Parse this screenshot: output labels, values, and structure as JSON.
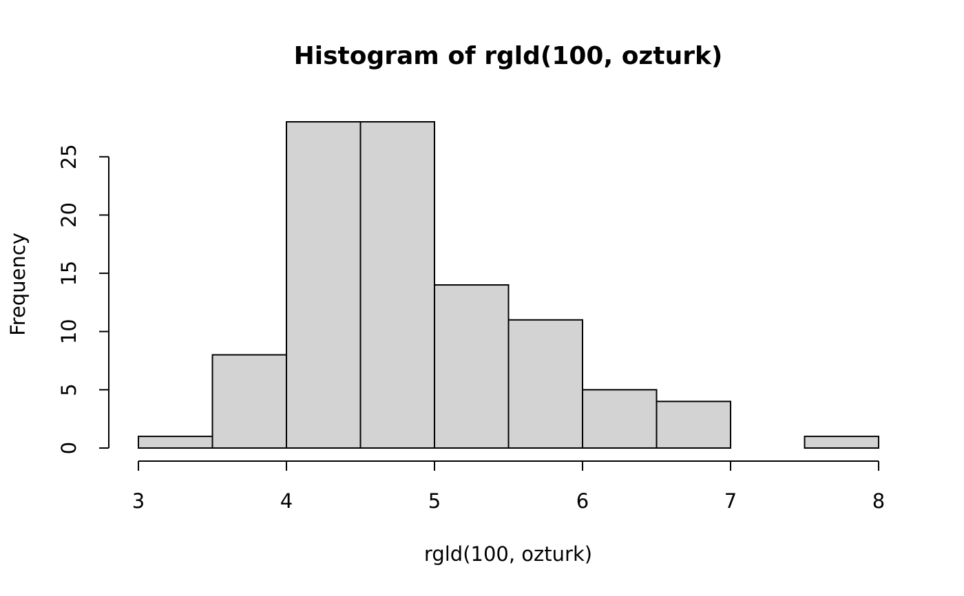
{
  "chart_data": {
    "type": "bar",
    "title": "Histogram of rgld(100, ozturk)",
    "xlabel": "rgld(100, ozturk)",
    "ylabel": "Frequency",
    "bins": [
      {
        "start": 3.0,
        "end": 3.5,
        "count": 1
      },
      {
        "start": 3.5,
        "end": 4.0,
        "count": 8
      },
      {
        "start": 4.0,
        "end": 4.5,
        "count": 28
      },
      {
        "start": 4.5,
        "end": 5.0,
        "count": 28
      },
      {
        "start": 5.0,
        "end": 5.5,
        "count": 14
      },
      {
        "start": 5.5,
        "end": 6.0,
        "count": 11
      },
      {
        "start": 6.0,
        "end": 6.5,
        "count": 5
      },
      {
        "start": 6.5,
        "end": 7.0,
        "count": 4
      },
      {
        "start": 7.0,
        "end": 7.5,
        "count": 0
      },
      {
        "start": 7.5,
        "end": 8.0,
        "count": 1
      }
    ],
    "xlim": [
      3,
      8
    ],
    "ylim": [
      0,
      28
    ],
    "x_ticks": [
      3,
      4,
      5,
      6,
      7,
      8
    ],
    "y_ticks": [
      0,
      5,
      10,
      15,
      20,
      25
    ],
    "grid": false,
    "legend": "none",
    "colors": {
      "bar_fill": "#d3d3d3",
      "bar_stroke": "#000000"
    }
  }
}
